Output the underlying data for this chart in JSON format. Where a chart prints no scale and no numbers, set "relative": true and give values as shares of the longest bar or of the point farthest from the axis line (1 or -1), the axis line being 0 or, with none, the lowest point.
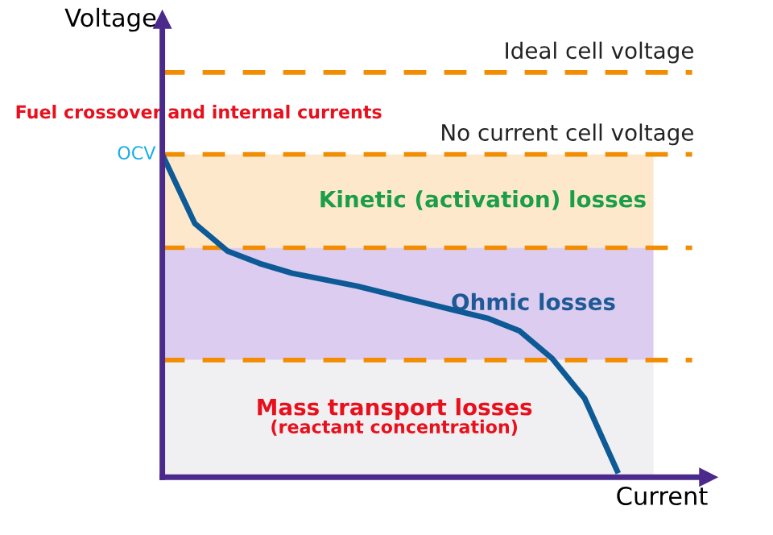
{
  "chart_data": {
    "type": "line",
    "relative": true,
    "xlabel": "Current",
    "legend": false,
    "marker": "none",
    "line_style": "solid",
    "categories": [
      null,
      null,
      null,
      null,
      null,
      null,
      null,
      null,
      null,
      null,
      null,
      null,
      null,
      null,
      null
    ],
    "series": [
      {
        "color": "#0d5a96",
        "values": [
          1.0,
          0.786,
          0.701,
          0.662,
          0.632,
          0.612,
          0.592,
          0.567,
          0.542,
          0.517,
          0.493,
          0.453,
          0.368,
          0.244,
          0.02
        ]
      }
    ],
    "bands": [
      {
        "axis": "y",
        "from": 0.711,
        "to": 1.0,
        "label": "Kinetic (activation) losses",
        "color": "#fde8cc"
      },
      {
        "axis": "y",
        "from": 0.363,
        "to": 0.711,
        "label": "Ohmic losses",
        "color": "#dccdf0"
      },
      {
        "axis": "y",
        "from": 0,
        "to": 0.363,
        "label": "Mass transport losses\n(reactant concentration)",
        "color": "#f0f0f2"
      }
    ],
    "ref_lines": [
      {
        "axis": "y",
        "value": 1.254,
        "label": "Ideal cell voltage",
        "color": "#f28c00",
        "line_style": "dashed"
      },
      {
        "axis": "y",
        "value": 1.0,
        "label": "No current cell voltage",
        "color": "#f28c00",
        "line_style": "dashed"
      },
      {
        "axis": "y",
        "value": 0.711,
        "label": null,
        "color": "#f28c00",
        "line_style": "dashed"
      },
      {
        "axis": "y",
        "value": 0.363,
        "label": null,
        "color": "#f28c00",
        "line_style": "dashed"
      }
    ],
    "annotations": [
      "Fuel crossover and internal currents",
      "OCV",
      "Voltage"
    ]
  }
}
